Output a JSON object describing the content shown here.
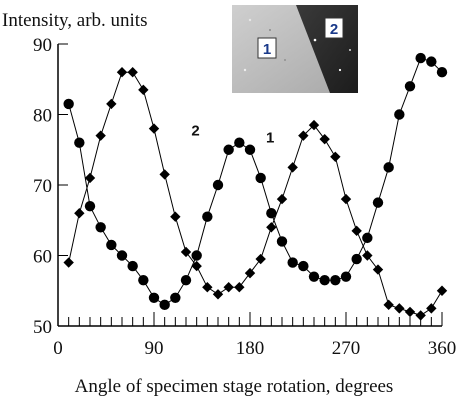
{
  "chart_data": {
    "type": "line",
    "ylabel": "Intensity, arb. units",
    "xlabel": "Angle of specimen stage rotation, degrees",
    "xlim": [
      0,
      360
    ],
    "ylim": [
      50,
      90
    ],
    "x_ticks": [
      0,
      90,
      180,
      270,
      360
    ],
    "x_tick_labels": [
      "0",
      "90",
      "180",
      "270",
      "360"
    ],
    "x_minor_step": 10,
    "y_ticks": [
      50,
      60,
      70,
      80,
      90
    ],
    "y_tick_labels": [
      "50",
      "60",
      "70",
      "80",
      "90"
    ],
    "grid": false,
    "series": [
      {
        "name": "1",
        "marker": "circle",
        "x": [
          10,
          20,
          30,
          40,
          50,
          60,
          70,
          80,
          90,
          100,
          110,
          120,
          130,
          140,
          150,
          160,
          170,
          180,
          190,
          200,
          210,
          220,
          230,
          240,
          250,
          260,
          270,
          280,
          290,
          300,
          310,
          320,
          330,
          340,
          350,
          360
        ],
        "values": [
          81.5,
          76,
          67,
          64,
          61.5,
          60,
          58.5,
          56.5,
          54,
          53,
          54,
          56.5,
          60,
          65.5,
          70,
          75,
          76,
          75,
          71,
          66,
          62,
          59,
          58.5,
          57,
          56.5,
          56.5,
          57,
          59.5,
          62.5,
          67.5,
          72.5,
          80,
          84,
          88,
          87.5,
          86
        ]
      },
      {
        "name": "2",
        "marker": "diamond",
        "x": [
          10,
          20,
          30,
          40,
          50,
          60,
          70,
          80,
          90,
          100,
          110,
          120,
          130,
          140,
          150,
          160,
          170,
          180,
          190,
          200,
          210,
          220,
          230,
          240,
          250,
          260,
          270,
          280,
          290,
          300,
          310,
          320,
          330,
          340,
          350,
          360
        ],
        "values": [
          59,
          66,
          71,
          77,
          81.5,
          86,
          86,
          83.5,
          78,
          71.5,
          65.5,
          60.5,
          58.5,
          55.5,
          54.5,
          55.5,
          55.5,
          57.5,
          59.5,
          64,
          68,
          72.5,
          77,
          78.5,
          76.5,
          74,
          68,
          63.5,
          60,
          58,
          53,
          52.5,
          52,
          51.5,
          52.5,
          55
        ]
      }
    ],
    "curve_labels": [
      {
        "text": "1",
        "x": 195,
        "y": 76
      },
      {
        "text": "2",
        "x": 125,
        "y": 77
      }
    ],
    "inset": {
      "region_labels": [
        "1",
        "2"
      ],
      "colors": {
        "light_region": "#bdbdbd",
        "dark_region": "#2a2a2a",
        "label_text": "#1a3a8a"
      }
    },
    "colors": {
      "line": "#000000",
      "axis": "#000000"
    }
  }
}
